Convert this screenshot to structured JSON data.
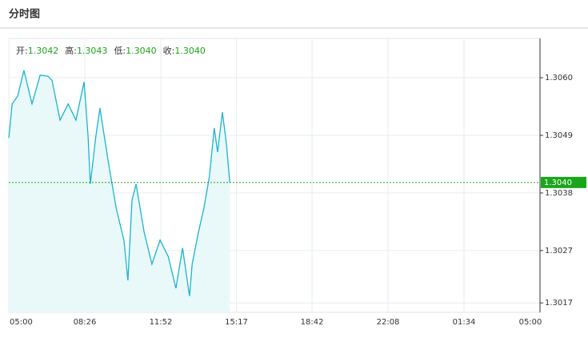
{
  "header": {
    "title": "分时图"
  },
  "chart_data": {
    "type": "line",
    "stats": [
      {
        "label": "开:",
        "value": "1.3042"
      },
      {
        "label": "高:",
        "value": "1.3043"
      },
      {
        "label": "低:",
        "value": "1.3040"
      },
      {
        "label": "收:",
        "value": "1.3040"
      }
    ],
    "last": {
      "value": 1.304,
      "label": "1.3040"
    },
    "x": [
      0,
      9,
      24,
      41,
      63,
      85,
      106,
      117,
      139,
      161,
      182,
      204,
      215,
      221,
      236,
      247,
      269,
      291,
      312,
      323,
      334,
      345,
      367,
      388,
      410,
      432,
      453,
      471,
      490,
      497,
      514,
      529,
      544,
      557,
      566,
      579,
      590,
      599
    ],
    "series": [
      {
        "color": "#1ab3d0",
        "fill": "#e9f9f9",
        "values": [
          1.30485,
          1.3055,
          1.30565,
          1.30614,
          1.3055,
          1.30605,
          1.30603,
          1.30595,
          1.30519,
          1.3055,
          1.30519,
          1.30592,
          1.30488,
          1.30397,
          1.30488,
          1.30542,
          1.30443,
          1.30351,
          1.3029,
          1.30213,
          1.30366,
          1.30397,
          1.30305,
          1.30244,
          1.3029,
          1.30259,
          1.30198,
          1.30275,
          1.30183,
          1.30244,
          1.30305,
          1.30351,
          1.30412,
          1.30504,
          1.30458,
          1.30534,
          1.30473,
          1.304
        ]
      }
    ],
    "xlim": [
      0,
      1440
    ],
    "xticks": [
      {
        "value": 0,
        "label": "05:00"
      },
      {
        "value": 206,
        "label": "08:26"
      },
      {
        "value": 412,
        "label": "11:52"
      },
      {
        "value": 617,
        "label": "15:17"
      },
      {
        "value": 822,
        "label": "18:42"
      },
      {
        "value": 1028,
        "label": "22:08"
      },
      {
        "value": 1234,
        "label": "01:34"
      },
      {
        "value": 1440,
        "label": "05:00"
      }
    ],
    "ylim": [
      1.30152,
      1.30675
    ],
    "yticks": [
      {
        "value": 1.306,
        "label": "1.3060"
      },
      1.3049,
      1.3038,
      1.3027,
      1.3017
    ],
    "grid": true,
    "last_color": "#1aa51a"
  }
}
